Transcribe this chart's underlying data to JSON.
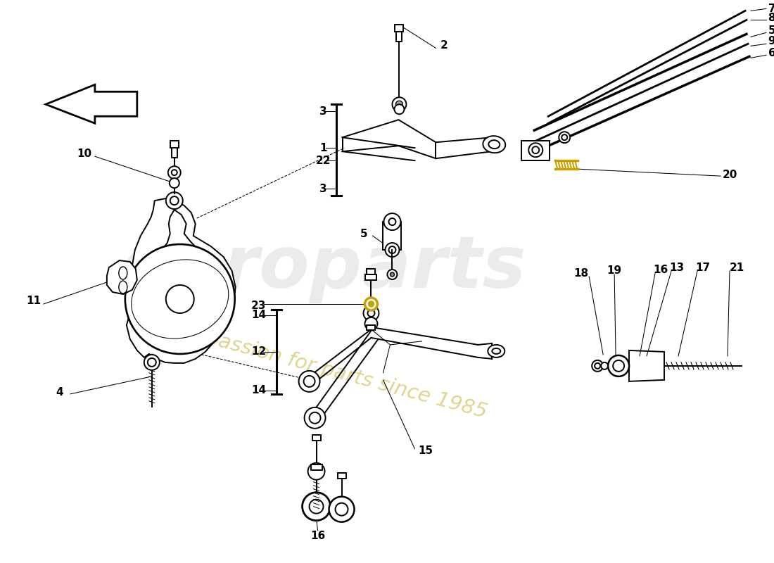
{
  "bg_color": "#ffffff",
  "line_color": "#000000",
  "yellow_color": "#c8a000",
  "lw_main": 1.4,
  "lw_thin": 0.75,
  "lw_thick": 2.2,
  "label_fs": 11
}
